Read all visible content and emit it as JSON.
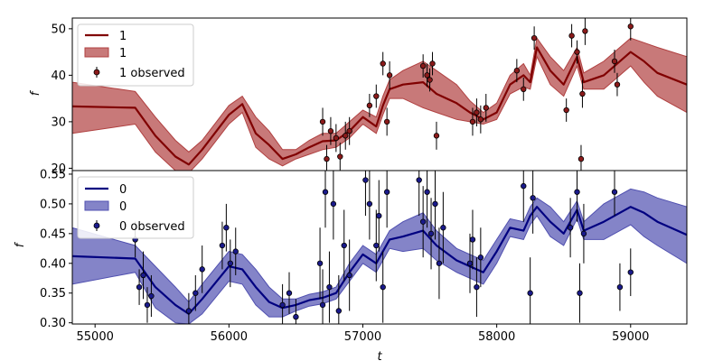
{
  "chart_data": [
    {
      "type": "line",
      "ylabel": "f",
      "xlim": [
        54830,
        59420
      ],
      "ylim": [
        19.5,
        52.3
      ],
      "x_ticks": [
        55000,
        56000,
        57000,
        58000,
        59000
      ],
      "y_ticks": [
        20,
        30,
        40,
        50
      ],
      "legend_position": "top-left",
      "legend": {
        "line": "1",
        "band": "1",
        "points": "1 observed"
      },
      "colors": {
        "line": "#800000",
        "band": "#b04040",
        "points": "#8b1a1a"
      },
      "series": [
        {
          "name": "1",
          "x": [
            54830,
            55300,
            55450,
            55600,
            55700,
            55800,
            56000,
            56100,
            56200,
            56300,
            56400,
            56500,
            56600,
            56700,
            56800,
            56900,
            57000,
            57100,
            57150,
            57200,
            57300,
            57450,
            57550,
            57700,
            57800,
            57900,
            58000,
            58100,
            58200,
            58250,
            58300,
            58400,
            58500,
            58600,
            58650,
            58800,
            59000,
            59100,
            59200,
            59420
          ],
          "y": [
            33.3,
            33.0,
            27.0,
            22.5,
            20.8,
            24.0,
            31.5,
            33.8,
            27.5,
            25.0,
            22.0,
            23.0,
            24.5,
            25.8,
            26.0,
            28.0,
            31.0,
            29.0,
            33.5,
            37.0,
            38.0,
            38.5,
            36.0,
            34.0,
            32.0,
            30.5,
            32.0,
            38.0,
            40.0,
            38.5,
            46.0,
            41.0,
            38.0,
            44.0,
            38.5,
            40.0,
            45.0,
            43.0,
            40.5,
            38.0
          ],
          "lower": [
            27.5,
            29.5,
            23.5,
            19.5,
            19.0,
            22.0,
            29.5,
            32.0,
            24.5,
            22.0,
            20.5,
            22.0,
            23.0,
            24.0,
            24.5,
            26.5,
            29.5,
            27.5,
            31.5,
            35.0,
            35.0,
            33.0,
            32.0,
            30.5,
            30.0,
            29.5,
            30.5,
            36.0,
            37.5,
            37.0,
            44.0,
            38.0,
            35.5,
            42.0,
            37.0,
            37.0,
            42.0,
            38.5,
            35.5,
            32.0
          ],
          "upper": [
            38.5,
            36.5,
            31.0,
            26.0,
            23.5,
            26.0,
            33.5,
            35.5,
            31.0,
            28.0,
            24.0,
            24.0,
            26.0,
            27.5,
            27.5,
            30.0,
            32.5,
            31.0,
            35.5,
            39.0,
            41.0,
            43.0,
            41.0,
            38.0,
            34.5,
            32.0,
            34.0,
            40.0,
            42.5,
            40.0,
            48.0,
            44.0,
            41.0,
            46.0,
            40.5,
            43.0,
            48.0,
            47.0,
            46.0,
            44.0
          ]
        },
        {
          "name": "1 observed",
          "x": [
            56700,
            56730,
            56760,
            56800,
            56830,
            56870,
            56900,
            57050,
            57100,
            57150,
            57180,
            57200,
            57450,
            57480,
            57500,
            57520,
            57550,
            57820,
            57850,
            57880,
            57920,
            58150,
            58200,
            58280,
            58520,
            58560,
            58600,
            58630,
            58640,
            58660,
            58880,
            58900,
            59000
          ],
          "y": [
            30.0,
            22.0,
            28.0,
            26.5,
            22.5,
            27.0,
            28.0,
            33.5,
            35.5,
            42.5,
            30.0,
            40.0,
            42.0,
            40.0,
            39.0,
            42.5,
            27.0,
            30.0,
            32.0,
            30.5,
            33.0,
            41.0,
            37.0,
            48.0,
            32.5,
            48.5,
            45.0,
            22.0,
            36.0,
            49.5,
            43.0,
            38.0,
            50.5
          ],
          "err": [
            3.0,
            3.0,
            3.0,
            3.0,
            3.0,
            3.0,
            3.0,
            2.5,
            2.5,
            2.5,
            3.0,
            3.0,
            2.5,
            2.5,
            2.5,
            2.5,
            3.0,
            3.0,
            3.0,
            3.0,
            3.0,
            2.5,
            2.5,
            2.5,
            2.5,
            2.5,
            2.5,
            3.0,
            3.0,
            3.0,
            2.5,
            2.5,
            3.0
          ]
        }
      ]
    },
    {
      "type": "line",
      "ylabel": "f",
      "xlabel": "t",
      "xlim": [
        54830,
        59420
      ],
      "ylim": [
        0.298,
        0.556
      ],
      "x_ticks": [
        55000,
        56000,
        57000,
        58000,
        59000
      ],
      "y_ticks": [
        0.3,
        0.35,
        0.4,
        0.45,
        0.5,
        0.55
      ],
      "legend_position": "top-left",
      "legend": {
        "line": "0",
        "band": "0",
        "points": "0 observed"
      },
      "colors": {
        "line": "#000080",
        "band": "#5050b0",
        "points": "#1a1a8b"
      },
      "series": [
        {
          "name": "0",
          "x": [
            54830,
            55300,
            55450,
            55600,
            55700,
            55800,
            56000,
            56100,
            56200,
            56300,
            56400,
            56500,
            56600,
            56700,
            56800,
            56900,
            57000,
            57100,
            57150,
            57200,
            57300,
            57450,
            57550,
            57700,
            57800,
            57900,
            58000,
            58100,
            58200,
            58250,
            58300,
            58400,
            58500,
            58600,
            58650,
            58800,
            59000,
            59100,
            59200,
            59420
          ],
          "y": [
            0.412,
            0.408,
            0.36,
            0.33,
            0.315,
            0.34,
            0.395,
            0.39,
            0.36,
            0.335,
            0.325,
            0.33,
            0.338,
            0.342,
            0.35,
            0.385,
            0.415,
            0.4,
            0.42,
            0.44,
            0.445,
            0.455,
            0.43,
            0.405,
            0.395,
            0.385,
            0.42,
            0.46,
            0.455,
            0.48,
            0.495,
            0.47,
            0.45,
            0.49,
            0.455,
            0.47,
            0.495,
            0.485,
            0.47,
            0.448
          ],
          "lower": [
            0.365,
            0.385,
            0.325,
            0.3,
            0.298,
            0.315,
            0.37,
            0.365,
            0.33,
            0.31,
            0.31,
            0.32,
            0.328,
            0.332,
            0.34,
            0.37,
            0.4,
            0.385,
            0.405,
            0.425,
            0.42,
            0.425,
            0.405,
            0.385,
            0.375,
            0.365,
            0.4,
            0.445,
            0.44,
            0.465,
            0.48,
            0.445,
            0.43,
            0.475,
            0.44,
            0.44,
            0.465,
            0.445,
            0.43,
            0.4
          ],
          "upper": [
            0.46,
            0.43,
            0.395,
            0.36,
            0.335,
            0.365,
            0.42,
            0.415,
            0.39,
            0.36,
            0.34,
            0.34,
            0.348,
            0.352,
            0.36,
            0.4,
            0.43,
            0.415,
            0.435,
            0.455,
            0.47,
            0.485,
            0.455,
            0.425,
            0.415,
            0.405,
            0.44,
            0.475,
            0.47,
            0.495,
            0.51,
            0.495,
            0.47,
            0.505,
            0.47,
            0.5,
            0.525,
            0.52,
            0.51,
            0.495
          ]
        },
        {
          "name": "0 observed",
          "x": [
            55300,
            55330,
            55360,
            55390,
            55420,
            55700,
            55750,
            55800,
            55950,
            55980,
            56010,
            56050,
            56400,
            56450,
            56500,
            56680,
            56700,
            56720,
            56750,
            56780,
            56820,
            56860,
            56900,
            57020,
            57050,
            57100,
            57120,
            57150,
            57180,
            57420,
            57450,
            57480,
            57510,
            57540,
            57570,
            57600,
            57800,
            57820,
            57850,
            57880,
            58200,
            58250,
            58270,
            58550,
            58600,
            58620,
            58650,
            58880,
            58920,
            59000
          ],
          "y": [
            0.44,
            0.36,
            0.38,
            0.33,
            0.345,
            0.32,
            0.35,
            0.39,
            0.43,
            0.46,
            0.4,
            0.42,
            0.33,
            0.35,
            0.31,
            0.4,
            0.33,
            0.52,
            0.36,
            0.5,
            0.32,
            0.43,
            0.38,
            0.54,
            0.5,
            0.43,
            0.48,
            0.36,
            0.52,
            0.54,
            0.47,
            0.52,
            0.45,
            0.5,
            0.4,
            0.46,
            0.4,
            0.44,
            0.36,
            0.41,
            0.53,
            0.35,
            0.51,
            0.46,
            0.52,
            0.35,
            0.45,
            0.52,
            0.36,
            0.385
          ],
          "err": [
            0.03,
            0.03,
            0.04,
            0.03,
            0.035,
            0.03,
            0.03,
            0.04,
            0.04,
            0.04,
            0.04,
            0.04,
            0.035,
            0.035,
            0.03,
            0.06,
            0.06,
            0.06,
            0.06,
            0.06,
            0.06,
            0.06,
            0.06,
            0.06,
            0.06,
            0.06,
            0.06,
            0.06,
            0.06,
            0.06,
            0.06,
            0.06,
            0.06,
            0.06,
            0.06,
            0.06,
            0.05,
            0.05,
            0.05,
            0.05,
            0.06,
            0.06,
            0.06,
            0.05,
            0.05,
            0.05,
            0.05,
            0.04,
            0.04,
            0.04
          ]
        }
      ]
    }
  ]
}
